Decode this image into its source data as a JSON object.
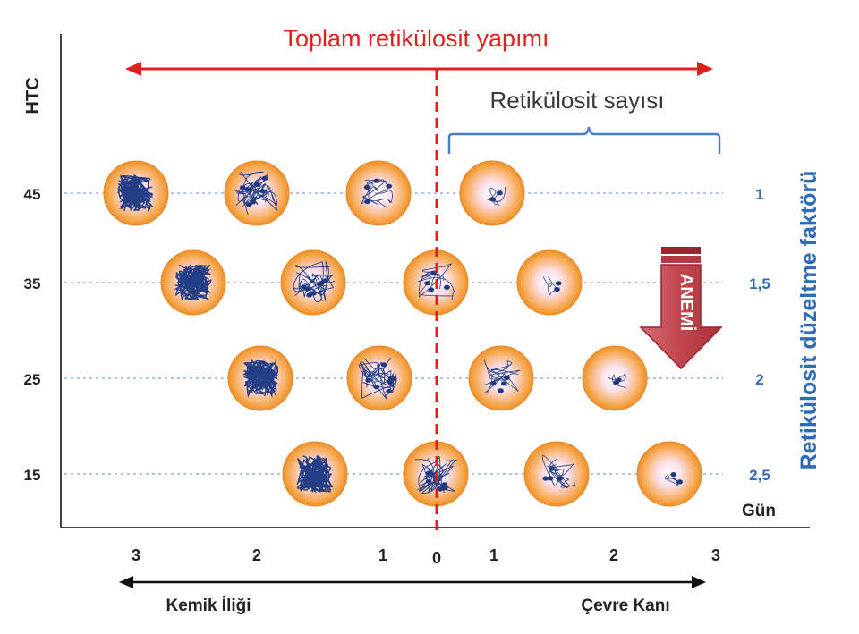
{
  "title": "Toplam retikülosit yapımı",
  "count_label": "Retikülosit sayısı",
  "y_axis_label": "HTC",
  "right_axis_label": "Retikülosit düzeltme faktörü",
  "day_label": "Gün",
  "anemia_label": "ANEMİ",
  "htc_ticks": [
    "45",
    "35",
    "25",
    "15"
  ],
  "correction_factors": [
    "1",
    "1,5",
    "2",
    "2,5"
  ],
  "day_ticks": [
    "3",
    "2",
    "1",
    "0",
    "1",
    "2",
    "3"
  ],
  "bottom_left_label": "Kemik İliği",
  "bottom_right_label": "Çevre Kanı",
  "colors": {
    "title_red": "#e0201e",
    "divider_red": "#e0201e",
    "blue_label": "#2e6db5",
    "bracket_blue": "#4a7cc7",
    "arrow_fill": "#c2464f",
    "cell_orange": "#f5a64a",
    "chromatin": "#253f86"
  },
  "cell_rows": [
    {
      "htc": "45",
      "factor": "1",
      "cells": [
        "dense",
        "medium",
        "sparse",
        "trace"
      ]
    },
    {
      "htc": "35",
      "factor": "1,5",
      "cells": [
        "dense",
        "medium",
        "sparse",
        "trace"
      ]
    },
    {
      "htc": "25",
      "factor": "2",
      "cells": [
        "dense",
        "medium",
        "sparse",
        "trace"
      ]
    },
    {
      "htc": "15",
      "factor": "2,5",
      "cells": [
        "dense",
        "medium",
        "sparse",
        "trace"
      ]
    }
  ]
}
